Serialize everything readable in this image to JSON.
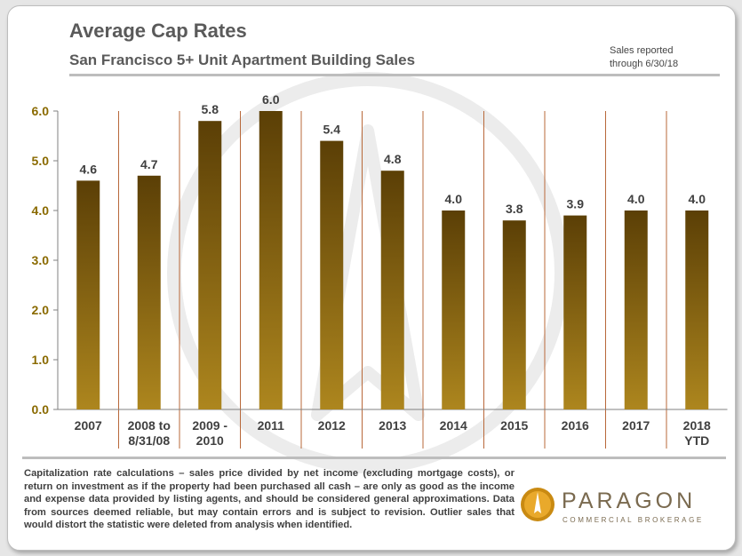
{
  "header": {
    "title": "Average Cap Rates",
    "subtitle": "San Francisco 5+ Unit Apartment Building Sales",
    "note": "Sales reported\nthrough 6/30/18"
  },
  "footnote": "Capitalization rate calculations – sales price divided by net income (excluding mortgage costs), or return on investment as if the property had been purchased all cash – are only as good as the income and expense data provided by listing agents, and should be considered general approximations. Data from sources deemed reliable, but may contain errors and is subject to revision. Outlier sales that would distort the statistic were deleted from analysis when identified.",
  "logo": {
    "name": "PARAGON",
    "tagline": "COMMERCIAL BROKERAGE",
    "icon": "paragon-logo-icon"
  },
  "colors": {
    "bar_top": "#5b3f06",
    "bar_bottom": "#ad861e",
    "ytick": "#8a6a00",
    "separator": "#b8683a",
    "text": "#404040",
    "watermark": "#ececec"
  },
  "chart_data": {
    "type": "bar",
    "categories": [
      "2007",
      "2008 to\n8/31/08",
      "2009 -\n2010",
      "2011",
      "2012",
      "2013",
      "2014",
      "2015",
      "2016",
      "2017",
      "2018\nYTD"
    ],
    "values": [
      4.6,
      4.7,
      5.8,
      6.0,
      5.4,
      4.8,
      4.0,
      3.8,
      3.9,
      4.0,
      4.0
    ],
    "data_labels": [
      "4.6",
      "4.7",
      "5.8",
      "6.0",
      "5.4",
      "4.8",
      "4.0",
      "3.8",
      "3.9",
      "4.0",
      "4.0"
    ],
    "yticks": [
      "0.0",
      "1.0",
      "2.0",
      "3.0",
      "4.0",
      "5.0",
      "6.0"
    ],
    "ylim": [
      0,
      6.0
    ],
    "grid": false,
    "legend": "none"
  }
}
